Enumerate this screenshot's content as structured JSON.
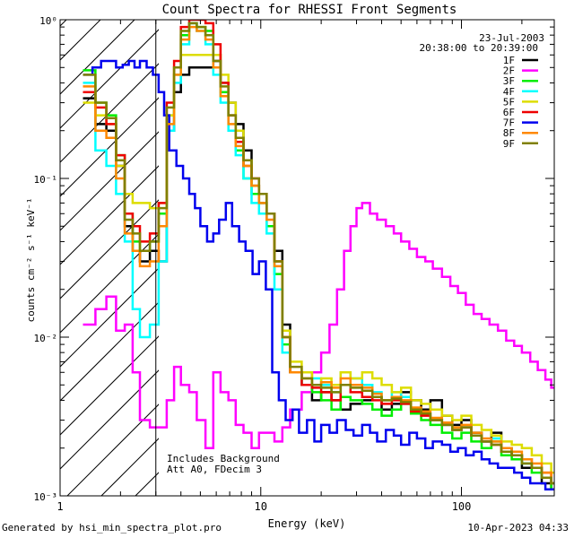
{
  "chart_data": {
    "type": "line",
    "title": "Count Spectra for RHESSI Front Segments",
    "xlabel": "Energy (keV)",
    "ylabel": "counts cm⁻² s⁻¹ keV⁻¹",
    "xscale": "log",
    "yscale": "log",
    "xlim": [
      1.0,
      290
    ],
    "ylim": [
      0.001,
      1.0
    ],
    "x_tick_labels": [
      "1",
      "10",
      "100"
    ],
    "y_tick_labels": [
      "10⁻³",
      "10⁻²",
      "10⁻¹",
      "10⁰"
    ],
    "legend_position": "top-right",
    "date": "23-Jul-2003",
    "time_range": "20:38:00 to 20:39:00",
    "annotations": [
      "Includes Background",
      "Att A0, FDecim 3"
    ],
    "shaded_region_below_keV": 3.0,
    "series": [
      {
        "name": "1F",
        "color": "#000000",
        "x": [
          1.3,
          1.5,
          1.7,
          1.9,
          2.1,
          2.3,
          2.5,
          2.8,
          3.1,
          3.4,
          3.7,
          4.0,
          4.4,
          4.8,
          5.3,
          5.8,
          6.3,
          6.9,
          7.5,
          8.2,
          9.0,
          9.8,
          10.7,
          11.7,
          12.8,
          14,
          16,
          18,
          20,
          22.5,
          25,
          28,
          32,
          36,
          40,
          45,
          50,
          56,
          63,
          70,
          80,
          90,
          100,
          112,
          126,
          141,
          158,
          178,
          200,
          224,
          251,
          280
        ],
        "y": [
          0.32,
          0.22,
          0.2,
          0.12,
          0.05,
          0.035,
          0.03,
          0.035,
          0.03,
          0.2,
          0.35,
          0.45,
          0.5,
          0.5,
          0.5,
          0.55,
          0.4,
          0.3,
          0.22,
          0.15,
          0.09,
          0.07,
          0.05,
          0.035,
          0.012,
          0.006,
          0.005,
          0.004,
          0.0045,
          0.004,
          0.0035,
          0.0038,
          0.004,
          0.0042,
          0.0035,
          0.0038,
          0.0045,
          0.004,
          0.0035,
          0.004,
          0.0032,
          0.0028,
          0.003,
          0.0025,
          0.0022,
          0.0025,
          0.002,
          0.0018,
          0.0015,
          0.0015,
          0.0012,
          0.0011
        ]
      },
      {
        "name": "2F",
        "color": "#ff00ff",
        "x": [
          1.3,
          1.5,
          1.7,
          1.9,
          2.1,
          2.3,
          2.5,
          2.8,
          3.1,
          3.4,
          3.7,
          4.0,
          4.4,
          4.8,
          5.3,
          5.8,
          6.3,
          6.9,
          7.5,
          8.2,
          9.0,
          9.8,
          10.7,
          11.7,
          12.8,
          14,
          16,
          18,
          20,
          22,
          24,
          26,
          28,
          30,
          32,
          35,
          38,
          42,
          46,
          50,
          55,
          60,
          66,
          72,
          80,
          88,
          96,
          105,
          115,
          126,
          138,
          152,
          167,
          183,
          200,
          220,
          240,
          262,
          280
        ],
        "y": [
          0.012,
          0.015,
          0.018,
          0.011,
          0.012,
          0.006,
          0.003,
          0.0027,
          0.0027,
          0.004,
          0.0065,
          0.005,
          0.0045,
          0.003,
          0.002,
          0.006,
          0.0045,
          0.004,
          0.0028,
          0.0025,
          0.002,
          0.0025,
          0.0025,
          0.0022,
          0.0027,
          0.0035,
          0.0045,
          0.006,
          0.008,
          0.012,
          0.02,
          0.035,
          0.05,
          0.065,
          0.07,
          0.06,
          0.055,
          0.05,
          0.045,
          0.04,
          0.036,
          0.032,
          0.03,
          0.027,
          0.024,
          0.021,
          0.019,
          0.016,
          0.014,
          0.013,
          0.012,
          0.011,
          0.0095,
          0.0088,
          0.008,
          0.007,
          0.0062,
          0.0054,
          0.0048
        ]
      },
      {
        "name": "3F",
        "color": "#00ee00",
        "x": [
          1.3,
          1.5,
          1.7,
          1.9,
          2.1,
          2.3,
          2.5,
          2.8,
          3.1,
          3.4,
          3.7,
          4.0,
          4.4,
          4.8,
          5.3,
          5.8,
          6.3,
          6.9,
          7.5,
          8.2,
          9.0,
          9.8,
          10.7,
          11.7,
          12.8,
          14,
          16,
          18,
          20,
          22.5,
          25,
          28,
          32,
          36,
          40,
          45,
          50,
          56,
          63,
          70,
          80,
          90,
          100,
          112,
          126,
          141,
          158,
          178,
          200,
          224,
          251,
          280
        ],
        "y": [
          0.48,
          0.3,
          0.25,
          0.14,
          0.06,
          0.04,
          0.035,
          0.04,
          0.06,
          0.25,
          0.45,
          0.8,
          0.95,
          0.9,
          0.85,
          0.6,
          0.35,
          0.25,
          0.15,
          0.1,
          0.08,
          0.07,
          0.05,
          0.025,
          0.009,
          0.006,
          0.005,
          0.0045,
          0.004,
          0.0035,
          0.0042,
          0.004,
          0.0038,
          0.0035,
          0.0032,
          0.0035,
          0.0038,
          0.0033,
          0.003,
          0.0028,
          0.0025,
          0.0023,
          0.0025,
          0.0022,
          0.002,
          0.0022,
          0.0018,
          0.0017,
          0.0016,
          0.0014,
          0.0013,
          0.0011
        ]
      },
      {
        "name": "4F",
        "color": "#00ffff",
        "x": [
          1.3,
          1.5,
          1.7,
          1.9,
          2.1,
          2.3,
          2.5,
          2.8,
          3.1,
          3.4,
          3.7,
          4.0,
          4.4,
          4.8,
          5.3,
          5.8,
          6.3,
          6.9,
          7.5,
          8.2,
          9.0,
          9.8,
          10.7,
          11.7,
          12.8,
          14,
          16,
          18,
          20,
          22.5,
          25,
          28,
          32,
          36,
          40,
          45,
          50,
          56,
          63,
          70,
          80,
          90,
          100,
          112,
          126,
          141,
          158,
          178,
          200,
          224,
          251,
          280
        ],
        "y": [
          0.4,
          0.15,
          0.12,
          0.08,
          0.04,
          0.015,
          0.01,
          0.012,
          0.03,
          0.2,
          0.4,
          0.7,
          0.95,
          0.85,
          0.7,
          0.45,
          0.3,
          0.2,
          0.14,
          0.1,
          0.07,
          0.06,
          0.045,
          0.02,
          0.008,
          0.006,
          0.005,
          0.0055,
          0.005,
          0.0045,
          0.006,
          0.0055,
          0.005,
          0.0045,
          0.004,
          0.0045,
          0.0042,
          0.0035,
          0.0033,
          0.003,
          0.0028,
          0.0026,
          0.0027,
          0.0024,
          0.0022,
          0.0023,
          0.002,
          0.0018,
          0.0016,
          0.0015,
          0.0013,
          0.0012
        ]
      },
      {
        "name": "5F",
        "color": "#dddd00",
        "x": [
          1.3,
          1.5,
          1.7,
          1.9,
          2.1,
          2.3,
          2.5,
          2.8,
          3.1,
          3.4,
          3.7,
          4.0,
          4.4,
          4.8,
          5.3,
          5.8,
          6.3,
          6.9,
          7.5,
          8.2,
          9.0,
          9.8,
          10.7,
          11.7,
          12.8,
          14,
          16,
          18,
          20,
          22.5,
          25,
          28,
          32,
          36,
          40,
          45,
          50,
          56,
          63,
          70,
          80,
          90,
          100,
          112,
          126,
          141,
          158,
          178,
          200,
          224,
          251,
          280
        ],
        "y": [
          0.3,
          0.25,
          0.22,
          0.12,
          0.08,
          0.07,
          0.07,
          0.065,
          0.07,
          0.25,
          0.5,
          0.6,
          0.6,
          0.6,
          0.6,
          0.6,
          0.45,
          0.3,
          0.2,
          0.13,
          0.09,
          0.08,
          0.06,
          0.03,
          0.011,
          0.007,
          0.006,
          0.005,
          0.0055,
          0.005,
          0.006,
          0.0055,
          0.006,
          0.0055,
          0.005,
          0.0045,
          0.0048,
          0.004,
          0.0038,
          0.0035,
          0.0032,
          0.003,
          0.0032,
          0.0028,
          0.0026,
          0.0024,
          0.0022,
          0.0021,
          0.002,
          0.0018,
          0.0016,
          0.0014
        ]
      },
      {
        "name": "6F",
        "color": "#ee0000",
        "x": [
          1.3,
          1.5,
          1.7,
          1.9,
          2.1,
          2.3,
          2.5,
          2.8,
          3.1,
          3.4,
          3.7,
          4.0,
          4.4,
          4.8,
          5.3,
          5.8,
          6.3,
          6.9,
          7.5,
          8.2,
          9.0,
          9.8,
          10.7,
          11.7,
          12.8,
          14,
          16,
          18,
          20,
          22.5,
          25,
          28,
          32,
          36,
          40,
          45,
          50,
          56,
          63,
          70,
          80,
          90,
          100,
          112,
          126,
          141,
          158,
          178,
          200,
          224,
          251,
          280
        ],
        "y": [
          0.35,
          0.28,
          0.22,
          0.14,
          0.06,
          0.05,
          0.04,
          0.045,
          0.07,
          0.3,
          0.55,
          0.9,
          1.0,
          1.0,
          0.95,
          0.7,
          0.4,
          0.25,
          0.17,
          0.12,
          0.1,
          0.08,
          0.06,
          0.03,
          0.01,
          0.006,
          0.005,
          0.0048,
          0.0045,
          0.004,
          0.005,
          0.0045,
          0.0042,
          0.004,
          0.0038,
          0.004,
          0.0038,
          0.0034,
          0.0032,
          0.003,
          0.0028,
          0.0026,
          0.0027,
          0.0024,
          0.0022,
          0.0021,
          0.0019,
          0.0018,
          0.0017,
          0.0015,
          0.0014,
          0.0012
        ]
      },
      {
        "name": "7F",
        "color": "#0000ee",
        "x": [
          1.3,
          1.45,
          1.6,
          1.75,
          1.9,
          2.05,
          2.2,
          2.35,
          2.5,
          2.7,
          2.9,
          3.1,
          3.3,
          3.5,
          3.8,
          4.1,
          4.4,
          4.7,
          5.0,
          5.4,
          5.8,
          6.2,
          6.7,
          7.2,
          7.8,
          8.4,
          9.1,
          9.8,
          10.6,
          11.4,
          12.3,
          13.3,
          14.4,
          15.5,
          17,
          18.5,
          20,
          22,
          24,
          26.5,
          29,
          32,
          35,
          38,
          42,
          46,
          50,
          55,
          60,
          66,
          72,
          80,
          88,
          96,
          105,
          115,
          126,
          138,
          152,
          167,
          183,
          200,
          220,
          240,
          262,
          280
        ],
        "y": [
          0.45,
          0.5,
          0.55,
          0.55,
          0.5,
          0.52,
          0.55,
          0.5,
          0.55,
          0.5,
          0.45,
          0.35,
          0.25,
          0.15,
          0.12,
          0.1,
          0.08,
          0.065,
          0.05,
          0.04,
          0.045,
          0.055,
          0.07,
          0.05,
          0.04,
          0.035,
          0.025,
          0.03,
          0.02,
          0.006,
          0.004,
          0.003,
          0.0035,
          0.0025,
          0.003,
          0.0022,
          0.0028,
          0.0025,
          0.003,
          0.0026,
          0.0024,
          0.0028,
          0.0025,
          0.0022,
          0.0026,
          0.0024,
          0.0021,
          0.0025,
          0.0023,
          0.002,
          0.0022,
          0.0021,
          0.0019,
          0.002,
          0.0018,
          0.0019,
          0.0017,
          0.0016,
          0.0015,
          0.0015,
          0.0014,
          0.0013,
          0.0012,
          0.0012,
          0.0011,
          0.0011
        ]
      },
      {
        "name": "8F",
        "color": "#ff8800",
        "x": [
          1.3,
          1.5,
          1.7,
          1.9,
          2.1,
          2.3,
          2.5,
          2.8,
          3.1,
          3.4,
          3.7,
          4.0,
          4.4,
          4.8,
          5.3,
          5.8,
          6.3,
          6.9,
          7.5,
          8.2,
          9.0,
          9.8,
          10.7,
          11.7,
          12.8,
          14,
          16,
          18,
          20,
          22.5,
          25,
          28,
          32,
          36,
          40,
          45,
          50,
          56,
          63,
          70,
          80,
          90,
          100,
          112,
          126,
          141,
          158,
          178,
          200,
          224,
          251,
          280
        ],
        "y": [
          0.38,
          0.2,
          0.18,
          0.1,
          0.045,
          0.035,
          0.028,
          0.03,
          0.05,
          0.22,
          0.45,
          0.75,
          0.9,
          0.85,
          0.75,
          0.5,
          0.33,
          0.22,
          0.16,
          0.12,
          0.09,
          0.07,
          0.055,
          0.028,
          0.01,
          0.006,
          0.0055,
          0.005,
          0.0052,
          0.0048,
          0.0055,
          0.005,
          0.0048,
          0.0044,
          0.004,
          0.0042,
          0.004,
          0.0036,
          0.0034,
          0.0031,
          0.0029,
          0.0027,
          0.0028,
          0.0025,
          0.0023,
          0.0022,
          0.002,
          0.0019,
          0.0017,
          0.0016,
          0.0014,
          0.0012
        ]
      },
      {
        "name": "9F",
        "color": "#808000",
        "x": [
          1.3,
          1.5,
          1.7,
          1.9,
          2.1,
          2.3,
          2.5,
          2.8,
          3.1,
          3.4,
          3.7,
          4.0,
          4.4,
          4.8,
          5.3,
          5.8,
          6.3,
          6.9,
          7.5,
          8.2,
          9.0,
          9.8,
          10.7,
          11.7,
          12.8,
          14,
          16,
          18,
          20,
          22.5,
          25,
          28,
          32,
          36,
          40,
          45,
          50,
          56,
          63,
          70,
          80,
          90,
          100,
          112,
          126,
          141,
          158,
          178,
          200,
          224,
          251,
          280
        ],
        "y": [
          0.45,
          0.3,
          0.24,
          0.13,
          0.055,
          0.045,
          0.035,
          0.04,
          0.065,
          0.28,
          0.5,
          0.85,
          0.95,
          0.9,
          0.8,
          0.55,
          0.38,
          0.25,
          0.18,
          0.13,
          0.1,
          0.08,
          0.06,
          0.03,
          0.01,
          0.0065,
          0.0055,
          0.005,
          0.0048,
          0.0045,
          0.005,
          0.0048,
          0.0046,
          0.0042,
          0.004,
          0.0041,
          0.0039,
          0.0035,
          0.0033,
          0.003,
          0.0028,
          0.0026,
          0.0027,
          0.0024,
          0.0022,
          0.0021,
          0.0019,
          0.0018,
          0.0016,
          0.0015,
          0.0013,
          0.0012
        ]
      }
    ]
  },
  "footer": {
    "left": "Generated by hsi_min_spectra_plot.pro",
    "right": "10-Apr-2023 04:33"
  }
}
